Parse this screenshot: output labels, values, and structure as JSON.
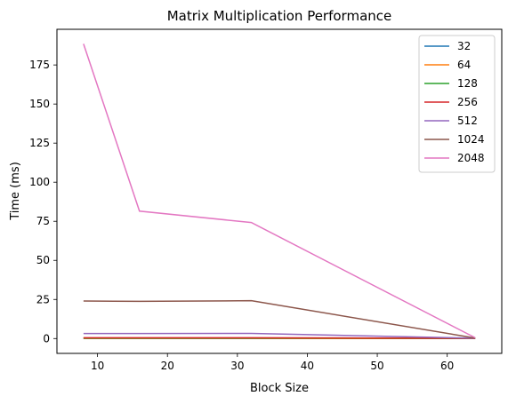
{
  "chart_data": {
    "type": "line",
    "title": "Matrix Multiplication Performance",
    "xlabel": "Block Size",
    "ylabel": "Time (ms)",
    "x": [
      8,
      16,
      32,
      64
    ],
    "xlim": [
      4.2,
      67.8
    ],
    "ylim": [
      -9.5,
      197.8
    ],
    "xticks": [
      10,
      20,
      30,
      40,
      50,
      60
    ],
    "yticks": [
      0,
      25,
      50,
      75,
      100,
      125,
      150,
      175
    ],
    "grid": false,
    "legend_position": "upper right",
    "series": [
      {
        "name": "32",
        "color": "#1f77b4",
        "values": [
          0.0,
          0.0,
          0.0,
          0.0
        ]
      },
      {
        "name": "64",
        "color": "#ff7f0e",
        "values": [
          0.05,
          0.05,
          0.05,
          0.0
        ]
      },
      {
        "name": "128",
        "color": "#2ca02c",
        "values": [
          0.3,
          0.3,
          0.3,
          0.05
        ]
      },
      {
        "name": "256",
        "color": "#d62728",
        "values": [
          0.5,
          0.5,
          0.5,
          0.1
        ]
      },
      {
        "name": "512",
        "color": "#9467bd",
        "values": [
          3.2,
          3.2,
          3.3,
          0.2
        ]
      },
      {
        "name": "1024",
        "color": "#8c564b",
        "values": [
          24.0,
          23.8,
          24.2,
          0.3
        ]
      },
      {
        "name": "2048",
        "color": "#e377c2",
        "values": [
          188.5,
          81.5,
          74.2,
          0.5
        ]
      }
    ]
  }
}
